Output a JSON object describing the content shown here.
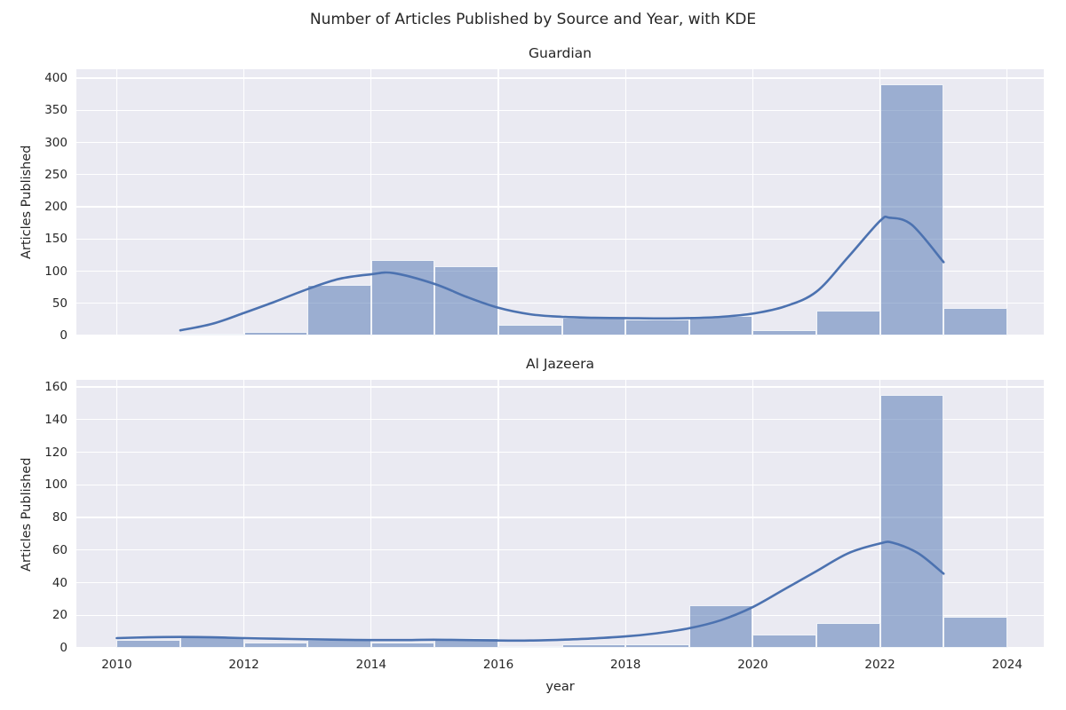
{
  "figure": {
    "title": "Number of Articles Published by Source and Year, with KDE",
    "xlabel": "year"
  },
  "colors": {
    "plot_background": "#eaeaf2",
    "gridline": "#ffffff",
    "bar_fill": "#4c72b0",
    "bar_alpha": 0.5,
    "bar_edge": "#ffffff",
    "kde_line": "#4c72b0",
    "text": "#262626"
  },
  "chart_data": [
    {
      "type": "bar",
      "subtype": "histogram_with_kde",
      "title": "Guardian",
      "ylabel": "Articles Published",
      "xlabel": "year",
      "bin_width_years": 1,
      "bin_align": "left-edge",
      "categories": [
        2011,
        2012,
        2013,
        2014,
        2015,
        2016,
        2017,
        2018,
        2019,
        2020,
        2021,
        2022,
        2023
      ],
      "values": [
        3,
        5,
        78,
        117,
        108,
        17,
        27,
        25,
        30,
        8,
        38,
        390,
        43
      ],
      "ylim": [
        0,
        400
      ],
      "yticks": [
        0,
        50,
        100,
        150,
        200,
        250,
        300,
        350,
        400
      ],
      "xticks": [
        2010,
        2012,
        2014,
        2016,
        2018,
        2020,
        2022,
        2024
      ],
      "xlim": [
        2009.37,
        2024.57
      ],
      "grid": true,
      "legend": false,
      "kde": {
        "x": [
          2011,
          2011.5,
          2012,
          2012.5,
          2013,
          2013.5,
          2014,
          2014.35,
          2015,
          2015.5,
          2016,
          2016.5,
          2017,
          2017.5,
          2018,
          2018.5,
          2019,
          2019.5,
          2020,
          2020.5,
          2021,
          2021.5,
          2022,
          2022.15,
          2022.5,
          2023
        ],
        "y": [
          8,
          18,
          35,
          53,
          72,
          88,
          95,
          97,
          80,
          60,
          43,
          33,
          29,
          27.5,
          27,
          26.5,
          27,
          29,
          34,
          45,
          68,
          122,
          178,
          183,
          172,
          114
        ]
      }
    },
    {
      "type": "bar",
      "subtype": "histogram_with_kde",
      "title": "Al Jazeera",
      "ylabel": "Articles Published",
      "xlabel": "year",
      "bin_width_years": 1,
      "bin_align": "left-edge",
      "categories": [
        2010,
        2011,
        2012,
        2013,
        2014,
        2015,
        2016,
        2017,
        2018,
        2019,
        2020,
        2021,
        2022,
        2023
      ],
      "values": [
        5,
        7,
        3,
        5,
        3,
        6,
        1,
        2,
        2,
        26,
        8,
        15,
        155,
        19
      ],
      "ylim": [
        0,
        160
      ],
      "yticks": [
        0,
        20,
        40,
        60,
        80,
        100,
        120,
        140,
        160
      ],
      "xticks": [
        2010,
        2012,
        2014,
        2016,
        2018,
        2020,
        2022,
        2024
      ],
      "xlim": [
        2009.37,
        2024.57
      ],
      "grid": true,
      "legend": false,
      "kde": {
        "x": [
          2010,
          2010.5,
          2011,
          2011.5,
          2012,
          2012.5,
          2013,
          2013.5,
          2014,
          2014.5,
          2015,
          2015.5,
          2016,
          2016.5,
          2017,
          2017.5,
          2018,
          2018.5,
          2019,
          2019.5,
          2020,
          2020.5,
          2021,
          2021.5,
          2022,
          2022.2,
          2022.6,
          2023
        ],
        "y": [
          6,
          6.5,
          6.7,
          6.5,
          6,
          5.6,
          5.3,
          5,
          4.8,
          4.8,
          5,
          4.8,
          4.5,
          4.5,
          5,
          5.8,
          7,
          9,
          12,
          17,
          25,
          36,
          47,
          58,
          64,
          64.5,
          58,
          45.5
        ]
      }
    }
  ]
}
